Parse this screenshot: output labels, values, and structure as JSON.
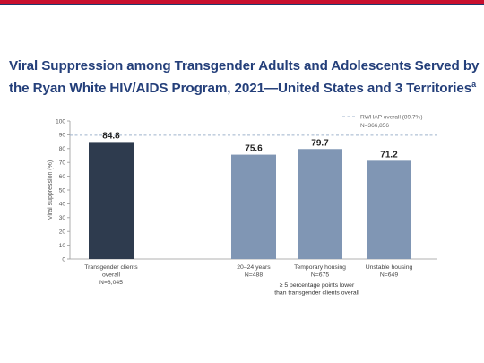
{
  "title": {
    "text": "Viral Suppression among Transgender Adults and Adolescents Served by the Ryan White HIV/AIDS Program, 2021—United States and 3 Territories",
    "footnote_mark": "a"
  },
  "footer_note": "",
  "chart_data": {
    "type": "bar",
    "ylabel": "Viral suppression (%)",
    "ylim": [
      0,
      100
    ],
    "yticks": [
      0,
      10,
      20,
      30,
      40,
      50,
      60,
      70,
      80,
      90,
      100
    ],
    "bars": [
      {
        "category": "Transgender clients overall",
        "n": "N=8,045",
        "value": 84.8,
        "color": "#2e3b4e"
      },
      {
        "category": "20–24 years",
        "n": "N=488",
        "value": 75.6,
        "color": "#8096b4"
      },
      {
        "category": "Temporary housing",
        "n": "N=675",
        "value": 79.7,
        "color": "#8096b4"
      },
      {
        "category": "Unstable housing",
        "n": "N=649",
        "value": 71.2,
        "color": "#8096b4"
      }
    ],
    "category_lines": [
      [
        "Transgender clients",
        "overall",
        "N=8,045"
      ],
      [
        "20–24 years",
        "N=488"
      ],
      [
        "Temporary housing",
        "N=675"
      ],
      [
        "Unstable housing",
        "N=649"
      ]
    ],
    "reference_line": {
      "value": 89.7,
      "label": "RWHAP overall (89.7%)",
      "n": "N=366,856",
      "color": "#9fb3cc"
    },
    "group_note": [
      "≥ 5 percentage points lower",
      "than transgender clients overall"
    ]
  }
}
